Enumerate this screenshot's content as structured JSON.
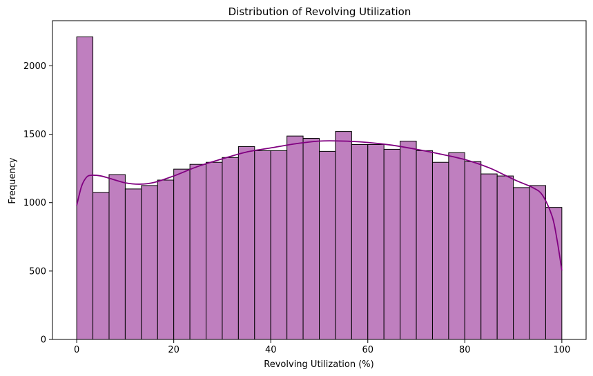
{
  "chart_data": {
    "type": "histogram",
    "title": "Distribution of Revolving Utilization",
    "xlabel": "Revolving Utilization (%)",
    "ylabel": "Frequency",
    "xlim": [
      -5,
      105
    ],
    "ylim": [
      0,
      2330
    ],
    "xticks": [
      0,
      20,
      40,
      60,
      80,
      100
    ],
    "yticks": [
      0,
      500,
      1000,
      1500,
      2000
    ],
    "bin_edges": [
      0,
      3.333,
      6.667,
      10,
      13.333,
      16.667,
      20,
      23.333,
      26.667,
      30,
      33.333,
      36.667,
      40,
      43.333,
      46.667,
      50,
      53.333,
      56.667,
      60,
      63.333,
      66.667,
      70,
      73.333,
      76.667,
      80,
      83.333,
      86.667,
      90,
      93.333,
      96.667,
      100
    ],
    "values": [
      2212,
      1075,
      1205,
      1100,
      1125,
      1165,
      1245,
      1280,
      1295,
      1330,
      1410,
      1380,
      1380,
      1487,
      1470,
      1375,
      1520,
      1425,
      1425,
      1390,
      1450,
      1380,
      1295,
      1365,
      1300,
      1210,
      1195,
      1110,
      1125,
      965
    ],
    "kde": {
      "x": [
        0,
        1,
        2,
        3,
        5,
        7,
        10,
        13,
        16,
        20,
        25,
        30,
        35,
        40,
        45,
        50,
        55,
        60,
        65,
        70,
        75,
        80,
        85,
        88,
        91,
        94,
        96,
        98,
        99,
        100
      ],
      "y": [
        980,
        1120,
        1185,
        1200,
        1195,
        1175,
        1145,
        1135,
        1148,
        1195,
        1265,
        1320,
        1370,
        1400,
        1430,
        1450,
        1450,
        1440,
        1420,
        1390,
        1355,
        1315,
        1255,
        1205,
        1155,
        1110,
        1055,
        900,
        730,
        505
      ]
    },
    "bar_color": "#BF7FBF",
    "bar_edge_color": "#000000",
    "kde_color": "#800080",
    "grid": false,
    "legend": false
  }
}
